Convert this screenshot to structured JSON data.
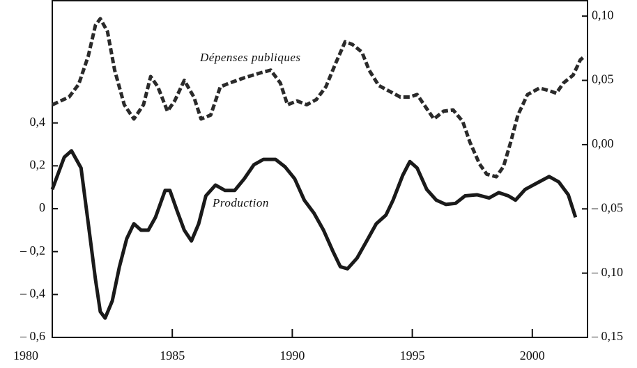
{
  "chart_data": {
    "type": "line",
    "xlim": [
      1980,
      2002.3
    ],
    "xticks": [
      1980,
      1985,
      1990,
      1995,
      2000
    ],
    "ylim": [
      -0.6,
      0.97
    ],
    "yticks": [
      {
        "value": -0.6,
        "label": "– 0,6"
      },
      {
        "value": -0.4,
        "label": "– 0,4"
      },
      {
        "value": -0.2,
        "label": "– 0,2"
      },
      0,
      {
        "value": 0.2,
        "label": "0,2"
      },
      {
        "value": 0.4,
        "label": "0,4"
      }
    ],
    "y2lim": [
      -0.15,
      0.112
    ],
    "y2ticks": [
      {
        "value": -0.15,
        "label": "– 0,15"
      },
      {
        "value": -0.1,
        "label": "– 0,10"
      },
      {
        "value": -0.05,
        "label": "– 0,05"
      },
      {
        "value": 0,
        "label": "0,00"
      },
      {
        "value": 0.05,
        "label": "0,05"
      },
      {
        "value": 0.1,
        "label": "0,10"
      }
    ],
    "series": [
      {
        "name": "Dépenses publiques",
        "color": "#2a2a2a",
        "style": "dashed",
        "axis": "y2",
        "x": [
          1980,
          1980.7,
          1981.1,
          1981.5,
          1981.8,
          1982.0,
          1982.3,
          1982.6,
          1983.0,
          1983.4,
          1983.8,
          1984.1,
          1984.4,
          1984.8,
          1985.1,
          1985.5,
          1985.9,
          1986.2,
          1986.6,
          1987.0,
          1987.4,
          1988.0,
          1988.7,
          1989.1,
          1989.5,
          1989.8,
          1990.2,
          1990.6,
          1991.0,
          1991.4,
          1991.8,
          1992.2,
          1992.5,
          1992.9,
          1993.2,
          1993.6,
          1994.0,
          1994.5,
          1994.9,
          1995.2,
          1995.6,
          1995.9,
          1996.3,
          1996.7,
          1997.1,
          1997.4,
          1997.8,
          1998.1,
          1998.5,
          1998.8,
          1999.1,
          1999.4,
          1999.8,
          2000.3,
          2000.7,
          2001.0,
          2001.3,
          2001.7,
          2002.0,
          2002.2
        ],
        "values": [
          0.031,
          0.037,
          0.047,
          0.069,
          0.093,
          0.098,
          0.088,
          0.058,
          0.031,
          0.02,
          0.031,
          0.053,
          0.045,
          0.026,
          0.034,
          0.05,
          0.037,
          0.02,
          0.023,
          0.045,
          0.048,
          0.052,
          0.056,
          0.058,
          0.048,
          0.031,
          0.034,
          0.031,
          0.035,
          0.045,
          0.063,
          0.08,
          0.078,
          0.072,
          0.058,
          0.046,
          0.042,
          0.037,
          0.037,
          0.039,
          0.028,
          0.02,
          0.026,
          0.027,
          0.018,
          0.002,
          -0.015,
          -0.023,
          -0.025,
          -0.017,
          0.002,
          0.023,
          0.039,
          0.044,
          0.042,
          0.04,
          0.048,
          0.054,
          0.066,
          0.069
        ]
      },
      {
        "name": "Production",
        "color": "#1a1a1a",
        "style": "solid",
        "axis": "y",
        "x": [
          1980,
          1980.5,
          1980.8,
          1981.2,
          1981.5,
          1981.8,
          1982.0,
          1982.2,
          1982.5,
          1982.8,
          1983.1,
          1983.4,
          1983.7,
          1984.0,
          1984.3,
          1984.7,
          1984.9,
          1985.2,
          1985.5,
          1985.8,
          1986.1,
          1986.4,
          1986.8,
          1987.2,
          1987.6,
          1988.0,
          1988.4,
          1988.8,
          1989.3,
          1989.7,
          1990.1,
          1990.5,
          1990.9,
          1991.3,
          1991.7,
          1992.0,
          1992.3,
          1992.7,
          1993.1,
          1993.5,
          1993.9,
          1994.2,
          1994.6,
          1994.9,
          1995.2,
          1995.6,
          1996.0,
          1996.4,
          1996.8,
          1997.2,
          1997.7,
          1998.2,
          1998.6,
          1999.0,
          1999.3,
          1999.7,
          2000.2,
          2000.7,
          2001.1,
          2001.5,
          2001.8
        ],
        "values": [
          0.09,
          0.24,
          0.27,
          0.19,
          -0.07,
          -0.33,
          -0.48,
          -0.51,
          -0.43,
          -0.27,
          -0.14,
          -0.07,
          -0.1,
          -0.1,
          -0.04,
          0.085,
          0.085,
          -0.01,
          -0.1,
          -0.15,
          -0.07,
          0.06,
          0.11,
          0.085,
          0.085,
          0.14,
          0.205,
          0.23,
          0.23,
          0.195,
          0.14,
          0.04,
          -0.02,
          -0.1,
          -0.2,
          -0.27,
          -0.28,
          -0.23,
          -0.15,
          -0.07,
          -0.03,
          0.04,
          0.155,
          0.22,
          0.19,
          0.09,
          0.04,
          0.02,
          0.025,
          0.06,
          0.065,
          0.05,
          0.075,
          0.06,
          0.04,
          0.09,
          0.12,
          0.15,
          0.125,
          0.065,
          -0.04
        ]
      }
    ]
  }
}
